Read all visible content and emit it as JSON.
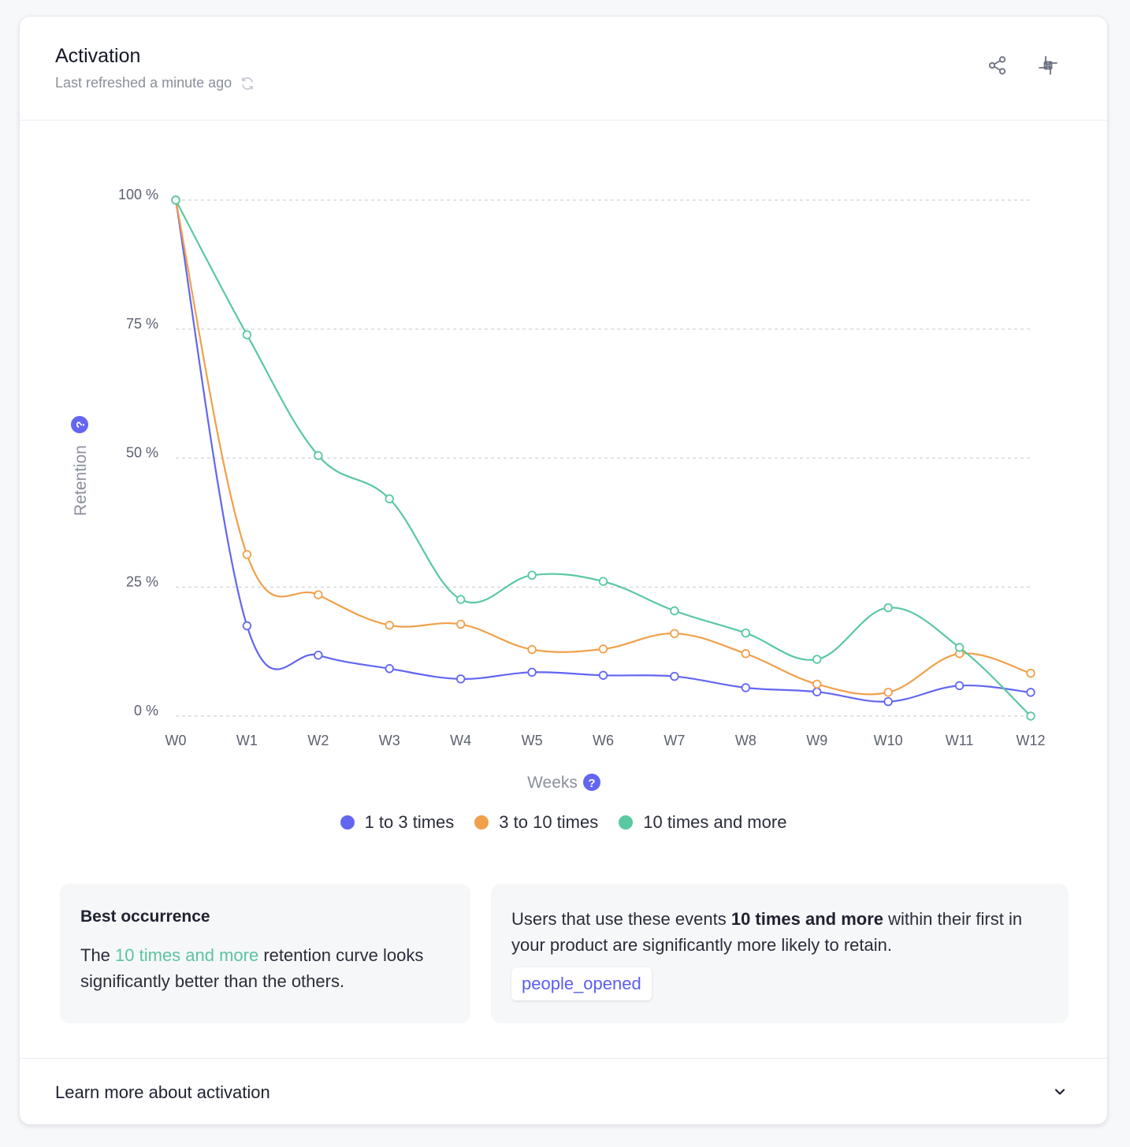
{
  "header": {
    "title": "Activation",
    "subtitle": "Last refreshed a minute ago"
  },
  "icons": {
    "refresh": "refresh-icon",
    "share": "share-icon",
    "slack": "slack-icon",
    "help": "help-icon",
    "chevron": "chevron-down-icon"
  },
  "chart_data": {
    "type": "line",
    "categories": [
      "W0",
      "W1",
      "W2",
      "W3",
      "W4",
      "W5",
      "W6",
      "W7",
      "W8",
      "W9",
      "W10",
      "W11",
      "W12"
    ],
    "y_ticks": [
      "0 %",
      "25 %",
      "50 %",
      "75 %",
      "100 %"
    ],
    "ylim": [
      0,
      100
    ],
    "xlabel": "Weeks",
    "ylabel": "Retention",
    "grid": true,
    "legend": "bottom-center",
    "series": [
      {
        "name": "1 to 3 times",
        "color": "#6366f1",
        "values": [
          100,
          17.5,
          11.8,
          9.2,
          7.2,
          8.5,
          7.9,
          7.7,
          5.5,
          4.7,
          2.8,
          5.9,
          4.6
        ]
      },
      {
        "name": "3 to 10 times",
        "color": "#f0a04b",
        "values": [
          100,
          31.3,
          23.5,
          17.6,
          17.8,
          12.9,
          13.0,
          16.0,
          12.1,
          6.2,
          4.6,
          12.1,
          8.3
        ]
      },
      {
        "name": "10 times and more",
        "color": "#5ac8a0",
        "values": [
          100,
          73.9,
          50.5,
          42.1,
          22.6,
          27.3,
          26.1,
          20.4,
          16.1,
          11.0,
          21.0,
          13.3,
          0
        ]
      }
    ]
  },
  "insights": {
    "best_heading": "Best occurrence",
    "best_text_pre": "The ",
    "best_text_accent": "10 times and more",
    "best_text_post": " retention curve looks significantly better than the others.",
    "users_text_pre": "Users that use these events ",
    "users_text_bold": "10 times and more",
    "users_text_post": " within their first in your product are significantly more likely to retain.",
    "event_chip": "people_opened"
  },
  "footer": {
    "label": "Learn more about activation"
  }
}
